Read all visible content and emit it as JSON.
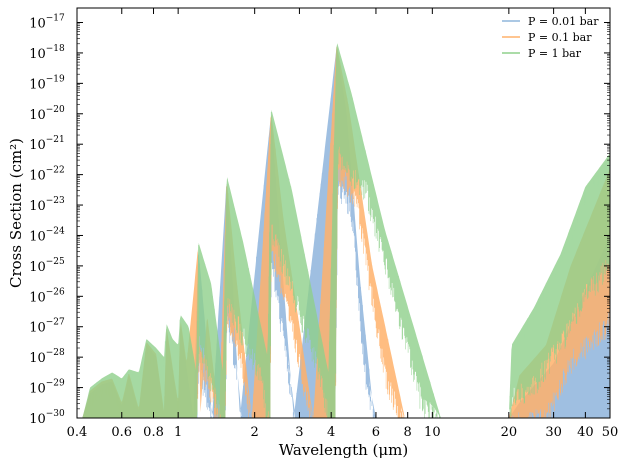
{
  "chart_data": {
    "type": "area",
    "title": "",
    "xlabel": "Wavelength (μm)",
    "ylabel": "Cross Section (cm²)",
    "x_scale": "log",
    "y_scale": "log",
    "xlim": [
      0.4,
      50
    ],
    "ylim": [
      1e-30,
      3e-17
    ],
    "x_ticks": [
      {
        "value": 0.4,
        "label": "0.4"
      },
      {
        "value": 0.6,
        "label": "0.6"
      },
      {
        "value": 0.8,
        "label": "0.8"
      },
      {
        "value": 1,
        "label": "1"
      },
      {
        "value": 2,
        "label": "2"
      },
      {
        "value": 3,
        "label": "3"
      },
      {
        "value": 4,
        "label": "4"
      },
      {
        "value": 6,
        "label": "6"
      },
      {
        "value": 8,
        "label": "8"
      },
      {
        "value": 10,
        "label": "10"
      },
      {
        "value": 20,
        "label": "20"
      },
      {
        "value": 30,
        "label": "30"
      },
      {
        "value": 40,
        "label": "40"
      },
      {
        "value": 50,
        "label": "50"
      }
    ],
    "y_ticks": [
      {
        "exp": -30,
        "base": "10",
        "sup": "−30"
      },
      {
        "exp": -29,
        "base": "10",
        "sup": "−29"
      },
      {
        "exp": -28,
        "base": "10",
        "sup": "−28"
      },
      {
        "exp": -27,
        "base": "10",
        "sup": "−27"
      },
      {
        "exp": -26,
        "base": "10",
        "sup": "−26"
      },
      {
        "exp": -25,
        "base": "10",
        "sup": "−25"
      },
      {
        "exp": -24,
        "base": "10",
        "sup": "−24"
      },
      {
        "exp": -23,
        "base": "10",
        "sup": "−23"
      },
      {
        "exp": -22,
        "base": "10",
        "sup": "−22"
      },
      {
        "exp": -21,
        "base": "10",
        "sup": "−21"
      },
      {
        "exp": -20,
        "base": "10",
        "sup": "−20"
      },
      {
        "exp": -19,
        "base": "10",
        "sup": "−19"
      },
      {
        "exp": -18,
        "base": "10",
        "sup": "−18"
      },
      {
        "exp": -17,
        "base": "10",
        "sup": "−17"
      }
    ],
    "legend_position": "top-right",
    "grid": false,
    "series": [
      {
        "name": "P = 0.01 bar",
        "color": "#8fb5dc",
        "opacity": 0.85,
        "envelope": [
          [
            0.42,
            -30
          ],
          [
            0.45,
            -29.2
          ],
          [
            0.5,
            -28.9
          ],
          [
            0.55,
            -28.8
          ],
          [
            0.6,
            -29.6
          ],
          [
            0.64,
            -28.6
          ],
          [
            0.7,
            -29.8
          ],
          [
            0.75,
            -27.6
          ],
          [
            0.82,
            -28.0
          ],
          [
            0.88,
            -29.9
          ],
          [
            0.9,
            -27.1
          ],
          [
            0.95,
            -28.4
          ],
          [
            1.0,
            -29.6
          ],
          [
            1.02,
            -26.8
          ],
          [
            1.08,
            -28.4
          ],
          [
            1.15,
            -30
          ],
          [
            1.2,
            -24.4
          ],
          [
            1.28,
            -27.0
          ],
          [
            1.36,
            -30
          ],
          [
            1.55,
            -22.2
          ],
          [
            1.65,
            -26.0
          ],
          [
            1.75,
            -30
          ],
          [
            2.32,
            -20.0
          ],
          [
            2.5,
            -23.8
          ],
          [
            2.85,
            -30
          ],
          [
            4.2,
            -17.8
          ],
          [
            4.6,
            -20.0
          ],
          [
            5.2,
            -25.5
          ],
          [
            5.9,
            -30
          ],
          [
            20,
            -30
          ],
          [
            22,
            -29.5
          ],
          [
            30,
            -28.2
          ],
          [
            40,
            -25.8
          ],
          [
            50,
            -24.0
          ]
        ],
        "floor": [
          [
            0.42,
            -30
          ],
          [
            1.18,
            -30
          ],
          [
            1.21,
            -28.0
          ],
          [
            1.3,
            -29.0
          ],
          [
            1.38,
            -30
          ],
          [
            1.53,
            -30
          ],
          [
            1.56,
            -26.5
          ],
          [
            1.68,
            -27.8
          ],
          [
            1.78,
            -30
          ],
          [
            2.3,
            -30
          ],
          [
            2.33,
            -24.5
          ],
          [
            2.6,
            -27.0
          ],
          [
            2.9,
            -30
          ],
          [
            4.15,
            -30
          ],
          [
            4.25,
            -22.0
          ],
          [
            4.8,
            -22.8
          ],
          [
            5.4,
            -28.0
          ],
          [
            6.0,
            -30
          ],
          [
            50,
            -30
          ]
        ]
      },
      {
        "name": "P = 0.1 bar",
        "color": "#ffb26c",
        "opacity": 0.85,
        "envelope": [
          [
            0.42,
            -30
          ],
          [
            0.45,
            -29.1
          ],
          [
            0.5,
            -28.8
          ],
          [
            0.55,
            -28.7
          ],
          [
            0.6,
            -29.5
          ],
          [
            0.64,
            -28.5
          ],
          [
            0.7,
            -29.7
          ],
          [
            0.75,
            -27.5
          ],
          [
            0.82,
            -27.9
          ],
          [
            0.88,
            -29.8
          ],
          [
            0.9,
            -27.0
          ],
          [
            0.95,
            -28.3
          ],
          [
            1.0,
            -29.5
          ],
          [
            1.02,
            -26.7
          ],
          [
            1.08,
            -28.2
          ],
          [
            1.22,
            -30
          ],
          [
            1.2,
            -24.3
          ],
          [
            1.3,
            -26.6
          ],
          [
            1.45,
            -30
          ],
          [
            1.55,
            -22.1
          ],
          [
            1.7,
            -25.5
          ],
          [
            1.95,
            -30
          ],
          [
            2.32,
            -19.9
          ],
          [
            2.6,
            -23.5
          ],
          [
            3.4,
            -30
          ],
          [
            4.2,
            -17.7
          ],
          [
            4.7,
            -19.8
          ],
          [
            5.8,
            -25.0
          ],
          [
            7.8,
            -30
          ],
          [
            20,
            -30
          ],
          [
            22,
            -28.6
          ],
          [
            28,
            -27.6
          ],
          [
            35,
            -25.0
          ],
          [
            50,
            -21.8
          ]
        ],
        "floor": [
          [
            0.42,
            -30
          ],
          [
            1.18,
            -30
          ],
          [
            1.21,
            -27.6
          ],
          [
            1.35,
            -28.8
          ],
          [
            1.45,
            -30
          ],
          [
            1.53,
            -30
          ],
          [
            1.56,
            -26.2
          ],
          [
            1.78,
            -27.8
          ],
          [
            1.95,
            -30
          ],
          [
            2.3,
            -30
          ],
          [
            2.33,
            -24.0
          ],
          [
            2.9,
            -27.2
          ],
          [
            3.4,
            -30
          ],
          [
            4.15,
            -30
          ],
          [
            4.25,
            -21.5
          ],
          [
            5.0,
            -22.4
          ],
          [
            6.5,
            -28.2
          ],
          [
            7.8,
            -30
          ],
          [
            20,
            -30
          ],
          [
            22,
            -29.8
          ],
          [
            28,
            -29.6
          ],
          [
            35,
            -27.8
          ],
          [
            50,
            -26.5
          ]
        ]
      },
      {
        "name": "P = 1 bar",
        "color": "#8fd08c",
        "opacity": 0.8,
        "envelope": [
          [
            0.42,
            -30
          ],
          [
            0.45,
            -29.0
          ],
          [
            0.5,
            -28.7
          ],
          [
            0.55,
            -28.5
          ],
          [
            0.6,
            -28.7
          ],
          [
            0.64,
            -28.4
          ],
          [
            0.7,
            -28.5
          ],
          [
            0.75,
            -27.4
          ],
          [
            0.82,
            -27.7
          ],
          [
            0.88,
            -28.0
          ],
          [
            0.9,
            -26.9
          ],
          [
            0.95,
            -27.4
          ],
          [
            1.0,
            -27.6
          ],
          [
            1.02,
            -26.6
          ],
          [
            1.1,
            -27.0
          ],
          [
            1.18,
            -28.5
          ],
          [
            1.2,
            -24.2
          ],
          [
            1.35,
            -25.6
          ],
          [
            1.5,
            -28.5
          ],
          [
            1.55,
            -22.0
          ],
          [
            1.8,
            -24.2
          ],
          [
            2.25,
            -28.0
          ],
          [
            2.32,
            -19.8
          ],
          [
            2.8,
            -22.5
          ],
          [
            3.9,
            -28.5
          ],
          [
            4.2,
            -17.6
          ],
          [
            4.8,
            -19.3
          ],
          [
            6.5,
            -23.8
          ],
          [
            10.8,
            -30
          ],
          [
            20,
            -30
          ],
          [
            20.5,
            -27.6
          ],
          [
            25,
            -26.4
          ],
          [
            32,
            -24.6
          ],
          [
            40,
            -22.4
          ],
          [
            50,
            -21.3
          ]
        ],
        "floor": [
          [
            0.42,
            -30
          ],
          [
            1.18,
            -30
          ],
          [
            1.21,
            -27.0
          ],
          [
            1.5,
            -30
          ],
          [
            1.53,
            -30
          ],
          [
            1.56,
            -25.8
          ],
          [
            2.1,
            -28.2
          ],
          [
            2.3,
            -30
          ],
          [
            2.33,
            -23.4
          ],
          [
            3.5,
            -27.8
          ],
          [
            4.0,
            -30
          ],
          [
            4.15,
            -30
          ],
          [
            4.25,
            -21.0
          ],
          [
            5.5,
            -22.2
          ],
          [
            9.0,
            -29.0
          ],
          [
            10.8,
            -30
          ],
          [
            20,
            -30
          ],
          [
            20.5,
            -29.0
          ],
          [
            25,
            -28.6
          ],
          [
            32,
            -27.2
          ],
          [
            40,
            -25.6
          ],
          [
            50,
            -24.6
          ]
        ]
      }
    ]
  }
}
